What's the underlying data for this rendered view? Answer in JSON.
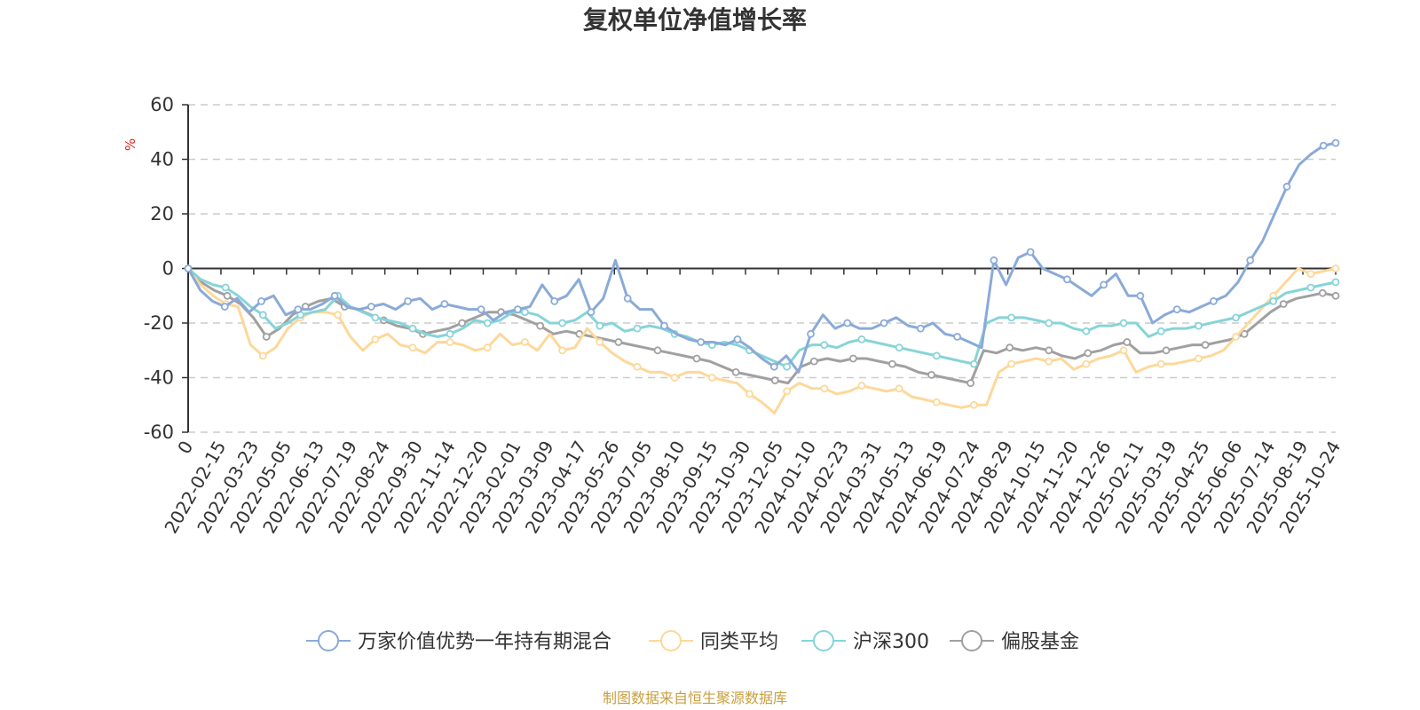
{
  "colors": {
    "fund": "#8aaad8",
    "peer_avg": "#fdd89a",
    "hs300": "#86d4d8",
    "partial_equity": "#a0a0a0",
    "axis": "#333333",
    "grid": "#cccccc",
    "source": "#c8a040",
    "unit": "#e02020"
  },
  "chart_data": {
    "type": "line",
    "title": "复权单位净值增长率",
    "unit_label": "%",
    "source_note": "制图数据来自恒生聚源数据库",
    "ylim": [
      -60,
      60
    ],
    "y_ticks": [
      "60",
      "40",
      "20",
      "0",
      "-20",
      "-40",
      "-60"
    ],
    "y_tick_values": [
      60,
      40,
      20,
      0,
      -20,
      -40,
      -60
    ],
    "x_tick_labels": [
      "0",
      "2022-02-15",
      "2022-03-23",
      "2022-05-05",
      "2022-06-13",
      "2022-07-19",
      "2022-08-24",
      "2022-09-30",
      "2022-11-14",
      "2022-12-20",
      "2023-02-01",
      "2023-03-09",
      "2023-04-17",
      "2023-05-26",
      "2023-07-05",
      "2023-08-10",
      "2023-09-15",
      "2023-10-30",
      "2023-12-05",
      "2024-01-10",
      "2024-02-23",
      "2024-03-31",
      "2024-05-13",
      "2024-06-19",
      "2024-07-24",
      "2024-08-29",
      "2024-10-15",
      "2024-11-20",
      "2024-12-26",
      "2025-02-11",
      "2025-03-19",
      "2025-04-25",
      "2025-06-06",
      "2025-07-14",
      "2025-08-19",
      "2025-10-24"
    ],
    "grid": true,
    "legend_position": "bottom",
    "series": [
      {
        "name": "万家价值优势一年持有期混合",
        "values": [
          0,
          -8,
          -12,
          -14,
          -11,
          -16,
          -12,
          -10,
          -17,
          -15,
          -15,
          -13,
          -10,
          -14,
          -15,
          -14,
          -13,
          -15,
          -12,
          -11,
          -15,
          -13,
          -14,
          -15,
          -15,
          -19,
          -16,
          -15,
          -14,
          -6,
          -12,
          -10,
          -4,
          -16,
          -11,
          3,
          -11,
          -15,
          -15,
          -21,
          -24,
          -26,
          -27,
          -27,
          -28,
          -26,
          -29,
          -33,
          -36,
          -32,
          -38,
          -24,
          -17,
          -22,
          -20,
          -22,
          -22,
          -20,
          -18,
          -21,
          -22,
          -20,
          -24,
          -25,
          -27,
          -29,
          3,
          -6,
          4,
          6,
          0,
          -2,
          -4,
          -7,
          -10,
          -6,
          -2,
          -10,
          -10,
          -20,
          -17,
          -15,
          -16,
          -14,
          -12,
          -10,
          -5,
          3,
          10,
          20,
          30,
          38,
          42,
          45,
          46
        ]
      },
      {
        "name": "同类平均",
        "values": [
          0,
          -6,
          -10,
          -13,
          -14,
          -28,
          -32,
          -29,
          -22,
          -18,
          -16,
          -16,
          -17,
          -25,
          -30,
          -26,
          -24,
          -28,
          -29,
          -31,
          -27,
          -27,
          -28,
          -30,
          -29,
          -24,
          -28,
          -27,
          -30,
          -24,
          -30,
          -29,
          -22,
          -27,
          -31,
          -34,
          -36,
          -38,
          -38,
          -40,
          -38,
          -38,
          -40,
          -41,
          -42,
          -46,
          -49,
          -53,
          -45,
          -42,
          -44,
          -44,
          -46,
          -45,
          -43,
          -44,
          -45,
          -44,
          -47,
          -48,
          -49,
          -50,
          -51,
          -50,
          -50,
          -38,
          -35,
          -34,
          -33,
          -34,
          -33,
          -37,
          -35,
          -33,
          -32,
          -30,
          -38,
          -36,
          -35,
          -35,
          -34,
          -33,
          -32,
          -30,
          -25,
          -20,
          -15,
          -10,
          -5,
          0,
          -2,
          -1,
          0
        ]
      },
      {
        "name": "沪深300",
        "values": [
          0,
          -4,
          -6,
          -7,
          -10,
          -14,
          -17,
          -22,
          -20,
          -17,
          -16,
          -15,
          -10,
          -14,
          -16,
          -18,
          -19,
          -20,
          -22,
          -24,
          -25,
          -24,
          -22,
          -19,
          -20,
          -19,
          -16,
          -16,
          -17,
          -20,
          -20,
          -19,
          -16,
          -21,
          -20,
          -23,
          -22,
          -21,
          -22,
          -24,
          -25,
          -27,
          -28,
          -27,
          -28,
          -30,
          -32,
          -34,
          -36,
          -30,
          -28,
          -28,
          -29,
          -27,
          -26,
          -27,
          -28,
          -29,
          -30,
          -31,
          -32,
          -33,
          -34,
          -35,
          -20,
          -18,
          -18,
          -18,
          -19,
          -20,
          -20,
          -22,
          -23,
          -21,
          -21,
          -20,
          -20,
          -25,
          -23,
          -22,
          -22,
          -21,
          -20,
          -19,
          -18,
          -16,
          -14,
          -12,
          -9,
          -8,
          -7,
          -6,
          -5
        ]
      },
      {
        "name": "偏股基金",
        "values": [
          0,
          -5,
          -8,
          -10,
          -13,
          -18,
          -25,
          -22,
          -17,
          -14,
          -12,
          -11,
          -14,
          -15,
          -17,
          -19,
          -21,
          -22,
          -24,
          -23,
          -22,
          -20,
          -18,
          -16,
          -16,
          -17,
          -19,
          -21,
          -24,
          -23,
          -24,
          -25,
          -26,
          -27,
          -28,
          -29,
          -30,
          -31,
          -32,
          -33,
          -34,
          -36,
          -38,
          -39,
          -40,
          -41,
          -42,
          -36,
          -34,
          -33,
          -34,
          -33,
          -33,
          -34,
          -35,
          -36,
          -38,
          -39,
          -40,
          -41,
          -42,
          -30,
          -31,
          -29,
          -30,
          -29,
          -30,
          -32,
          -33,
          -31,
          -30,
          -28,
          -27,
          -31,
          -31,
          -30,
          -29,
          -28,
          -28,
          -27,
          -26,
          -24,
          -20,
          -16,
          -13,
          -11,
          -10,
          -9,
          -10
        ]
      }
    ]
  }
}
